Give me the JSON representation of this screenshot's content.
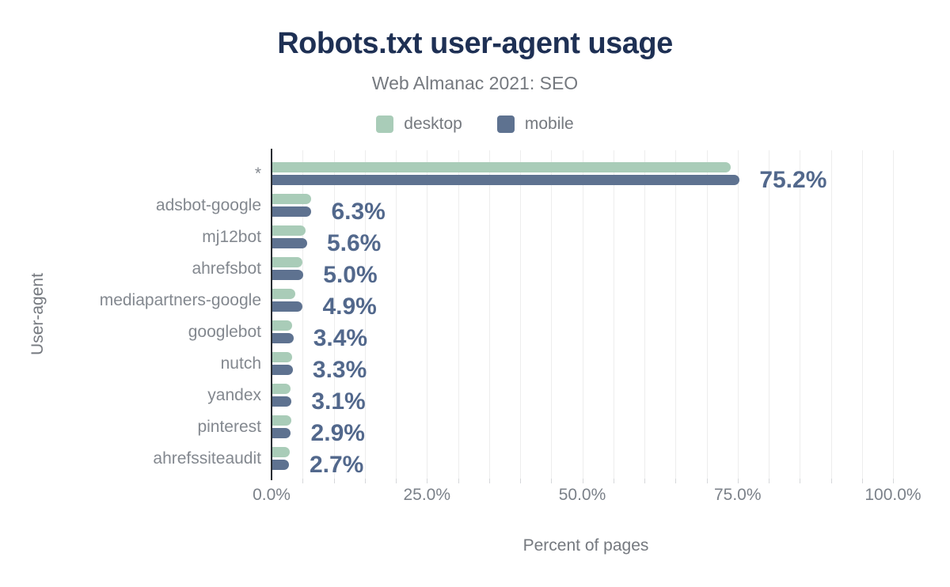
{
  "header": {
    "title": "Robots.txt user-agent usage",
    "subtitle": "Web Almanac 2021: SEO"
  },
  "legend": [
    {
      "label": "desktop",
      "color": "#a9ccb8"
    },
    {
      "label": "mobile",
      "color": "#5e7290"
    }
  ],
  "axes": {
    "x_title": "Percent of pages",
    "y_title": "User-agent",
    "x_ticks": [
      {
        "value": 0,
        "label": "0.0%"
      },
      {
        "value": 25,
        "label": "25.0%"
      },
      {
        "value": 50,
        "label": "50.0%"
      },
      {
        "value": 75,
        "label": "75.0%"
      },
      {
        "value": 100,
        "label": "100.0%"
      }
    ]
  },
  "colors": {
    "title": "#1e3054",
    "value_label": "#52688c",
    "category_text": "#83888f",
    "axis_text": "#7b8189",
    "gridline": "#ededed",
    "axis_line": "#292d33"
  },
  "chart_data": {
    "type": "bar",
    "orientation": "horizontal",
    "title": "Robots.txt user-agent usage",
    "subtitle": "Web Almanac 2021: SEO",
    "xlabel": "Percent of pages",
    "ylabel": "User-agent",
    "xlim": [
      0,
      100
    ],
    "grid": "vertical minor gridlines every 5%, ticks every 5%",
    "legend_position": "top",
    "categories": [
      "*",
      "adsbot-google",
      "mj12bot",
      "ahrefsbot",
      "mediapartners-google",
      "googlebot",
      "nutch",
      "yandex",
      "pinterest",
      "ahrefssiteaudit"
    ],
    "series": [
      {
        "name": "desktop",
        "color": "#a9ccb8",
        "values": [
          73.8,
          6.2,
          5.4,
          4.9,
          3.7,
          3.2,
          3.2,
          2.9,
          3.0,
          2.8
        ]
      },
      {
        "name": "mobile",
        "color": "#5e7290",
        "values": [
          75.2,
          6.3,
          5.6,
          5.0,
          4.9,
          3.4,
          3.3,
          3.1,
          2.9,
          2.7
        ]
      }
    ],
    "value_labels": [
      "75.2%",
      "6.3%",
      "5.6%",
      "5.0%",
      "4.9%",
      "3.4%",
      "3.3%",
      "3.1%",
      "2.9%",
      "2.7%"
    ]
  }
}
